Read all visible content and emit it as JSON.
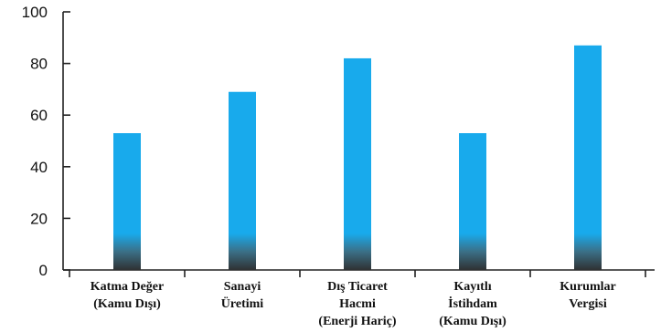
{
  "chart_data": {
    "type": "bar",
    "categories": [
      [
        "Katma Değer",
        "(Kamu Dışı)"
      ],
      [
        "Sanayi",
        "Üretimi"
      ],
      [
        "Dış Ticaret",
        "Hacmi",
        "(Enerji Hariç)"
      ],
      [
        "Kayıtlı",
        "İstihdam",
        "(Kamu Dışı)"
      ],
      [
        "Kurumlar",
        "Vergisi"
      ]
    ],
    "values": [
      53,
      69,
      82,
      53,
      87
    ],
    "title": "",
    "xlabel": "",
    "ylabel": "",
    "ylim": [
      0,
      100
    ],
    "yticks": [
      0,
      20,
      40,
      60,
      80,
      100
    ],
    "grid": false,
    "colors": {
      "bar": "#18aaec",
      "bar_base": "#2f3133",
      "axis": "#222222"
    }
  }
}
